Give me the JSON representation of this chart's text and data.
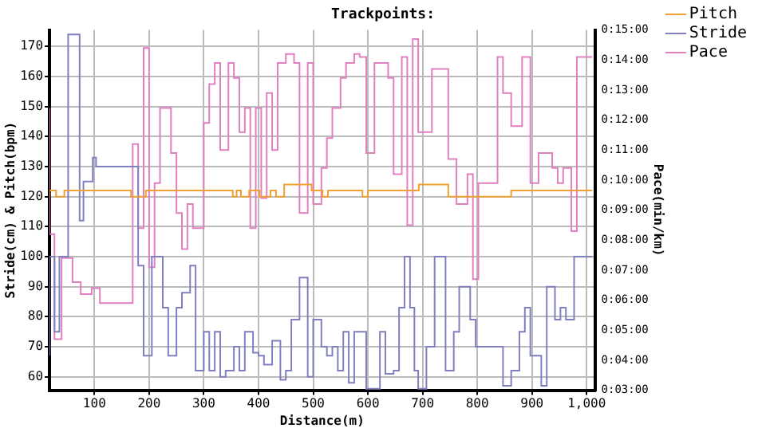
{
  "chart_data": {
    "type": "step",
    "title": "Trackpoints:",
    "xlabel": "Distance(m)",
    "ylabel": "Stride(cm) & Pitch(bpm)",
    "y2label": "Pace(min/km)",
    "xlim": [
      18,
      1015
    ],
    "xticks": [
      100,
      200,
      300,
      400,
      500,
      600,
      700,
      800,
      900,
      {
        "value": 1000,
        "label": "1,000"
      }
    ],
    "ylim": [
      55.5,
      175.5
    ],
    "yticks": [
      60,
      70,
      80,
      90,
      100,
      110,
      120,
      130,
      140,
      150,
      160,
      170
    ],
    "y2lim": [
      3,
      15
    ],
    "y2ticks": [
      {
        "value": 3,
        "label": "0:03:00"
      },
      {
        "value": 4,
        "label": "0:04:00"
      },
      {
        "value": 5,
        "label": "0:05:00"
      },
      {
        "value": 6,
        "label": "0:06:00"
      },
      {
        "value": 7,
        "label": "0:07:00"
      },
      {
        "value": 8,
        "label": "0:08:00"
      },
      {
        "value": 9,
        "label": "0:09:00"
      },
      {
        "value": 10,
        "label": "0:10:00"
      },
      {
        "value": 11,
        "label": "0:11:00"
      },
      {
        "value": 12,
        "label": "0:12:00"
      },
      {
        "value": 13,
        "label": "0:13:00"
      },
      {
        "value": 14,
        "label": "0:14:00"
      },
      {
        "value": 15,
        "label": "0:15:00"
      }
    ],
    "grid": true,
    "legend": "right",
    "marker": "none",
    "series": [
      {
        "name": "Pitch",
        "color": "#f0a030",
        "x": [
          18,
          30,
          45,
          167,
          194,
          353,
          360,
          368,
          383,
          402,
          422,
          432,
          447,
          497,
          517,
          527,
          590,
          600,
          693,
          747,
          862,
          917,
          1010
        ],
        "values": [
          120,
          122,
          120,
          122,
          120,
          122,
          120,
          122,
          120,
          122,
          120,
          122,
          120,
          124,
          122,
          120,
          122,
          120,
          122,
          124,
          120,
          122,
          122
        ]
      },
      {
        "name": "Stride",
        "color": "#8080c0",
        "x": [
          18,
          27,
          36,
          52,
          73,
          80,
          97,
          103,
          180,
          190,
          205,
          225,
          235,
          250,
          260,
          275,
          285,
          300,
          310,
          320,
          330,
          340,
          355,
          365,
          375,
          390,
          400,
          410,
          425,
          440,
          450,
          460,
          475,
          490,
          500,
          515,
          525,
          535,
          545,
          555,
          565,
          575,
          585,
          597,
          622,
          632,
          647,
          657,
          667,
          677,
          685,
          692,
          707,
          722,
          742,
          757,
          767,
          787,
          797,
          847,
          862,
          877,
          887,
          897,
          917,
          927,
          942,
          952,
          962,
          977,
          992,
          1010
        ],
        "values": [
          67,
          100,
          75,
          100,
          174,
          112,
          125,
          133,
          130,
          97,
          67,
          100,
          83,
          67,
          83,
          88,
          97,
          62,
          75,
          62,
          75,
          60,
          62,
          70,
          62,
          75,
          68,
          67,
          64,
          72,
          59,
          62,
          79,
          93,
          60,
          79,
          70,
          67,
          70,
          62,
          75,
          58,
          75,
          75,
          56,
          75,
          61,
          62,
          83,
          100,
          83,
          62,
          56,
          70,
          100,
          62,
          75,
          90,
          79,
          70,
          57,
          62,
          75,
          83,
          67,
          57,
          90,
          79,
          83,
          79,
          100,
          100
        ]
      },
      {
        "name": "Pace",
        "color": "#e080c0",
        "axis": "y2",
        "x": [
          18,
          27,
          40,
          60,
          75,
          95,
          110,
          170,
          180,
          190,
          200,
          210,
          220,
          240,
          250,
          260,
          270,
          280,
          300,
          310,
          320,
          330,
          345,
          355,
          365,
          375,
          385,
          395,
          405,
          415,
          425,
          435,
          450,
          465,
          475,
          490,
          500,
          515,
          525,
          535,
          550,
          560,
          575,
          585,
          597,
          612,
          637,
          647,
          662,
          672,
          682,
          692,
          717,
          747,
          762,
          782,
          792,
          802,
          837,
          847,
          862,
          882,
          897,
          912,
          937,
          947,
          957,
          972,
          982,
          997,
          1010
        ],
        "values": [
          12.4,
          8.2,
          4.7,
          7.4,
          6.6,
          6.2,
          6.4,
          5.9,
          11.2,
          8.4,
          14.4,
          7.1,
          9.9,
          12.4,
          10.9,
          8.9,
          7.7,
          9.2,
          8.4,
          11.9,
          13.2,
          13.9,
          11.0,
          13.9,
          13.4,
          11.6,
          12.4,
          8.4,
          12.4,
          9.4,
          12.9,
          11.0,
          13.9,
          14.2,
          13.9,
          8.9,
          13.9,
          9.2,
          10.4,
          11.4,
          12.4,
          13.4,
          13.9,
          14.2,
          14.1,
          10.9,
          13.9,
          13.4,
          10.2,
          14.1,
          8.5,
          14.7,
          11.6,
          13.7,
          10.7,
          9.2,
          10.2,
          6.7,
          9.9,
          14.1,
          12.9,
          11.8,
          14.1,
          9.9,
          10.9,
          10.4,
          9.9,
          10.4,
          8.3,
          14.1,
          14.1
        ]
      }
    ]
  }
}
